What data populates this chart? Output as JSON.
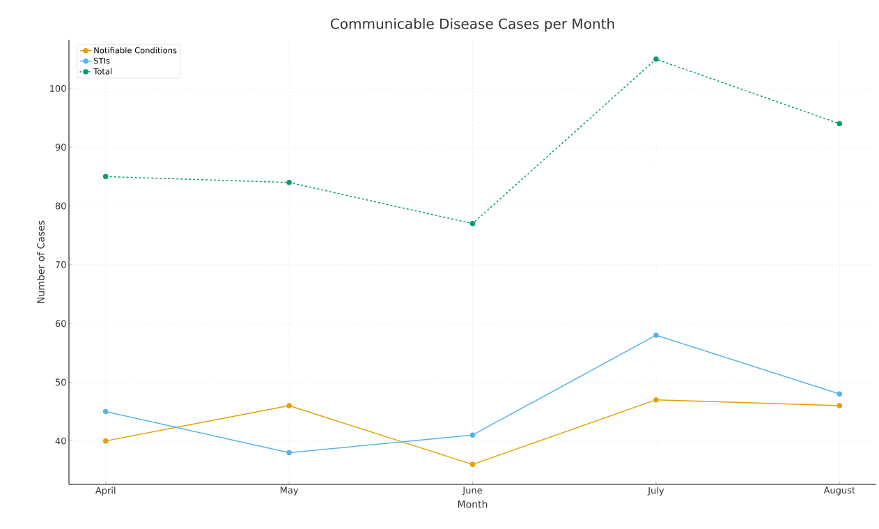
{
  "chart_data": {
    "type": "line",
    "title": "Communicable Disease Cases per Month",
    "xlabel": "Month",
    "ylabel": "Number of Cases",
    "categories": [
      "April",
      "May",
      "June",
      "July",
      "August"
    ],
    "series": [
      {
        "name": "Notifiable Conditions",
        "color": "#e69f00",
        "values": [
          40,
          46,
          36,
          47,
          46
        ]
      },
      {
        "name": "STIs",
        "color": "#56b4e9",
        "values": [
          45,
          38,
          41,
          58,
          48
        ]
      },
      {
        "name": "Total",
        "color": "#009e73",
        "values": [
          85,
          84,
          77,
          105,
          94
        ],
        "line_style": "dashed"
      }
    ],
    "ylim": [
      32.6,
      108.3
    ],
    "yticks": [
      40,
      50,
      60,
      70,
      80,
      90,
      100
    ],
    "grid": true,
    "legend": "top left",
    "marker": "circle",
    "line_style": "solid"
  }
}
